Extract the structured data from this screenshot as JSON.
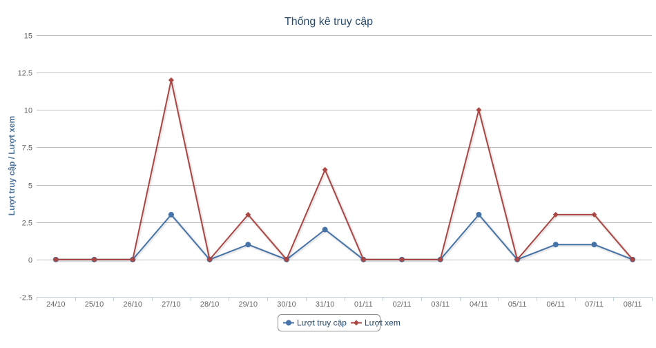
{
  "chart_data": {
    "type": "line",
    "title": "Thống kê truy cập",
    "xlabel": "",
    "ylabel": "Lượt truy cập / Lượt xem",
    "categories": [
      "24/10",
      "25/10",
      "26/10",
      "27/10",
      "28/10",
      "29/10",
      "30/10",
      "31/10",
      "01/11",
      "02/11",
      "03/11",
      "04/11",
      "05/11",
      "06/11",
      "07/11",
      "08/11"
    ],
    "ylim": [
      -2.5,
      15
    ],
    "yticks": [
      "-2.5",
      "0",
      "2.5",
      "5",
      "7.5",
      "10",
      "12.5",
      "15"
    ],
    "grid": true,
    "legend_position": "bottom-center",
    "series": [
      {
        "name": "Lượt truy cập",
        "color": "#4572a7",
        "marker": "circle",
        "values": [
          0,
          0,
          0,
          3,
          0,
          1,
          0,
          2,
          0,
          0,
          0,
          3,
          0,
          1,
          1,
          0
        ]
      },
      {
        "name": "Lượt xem",
        "color": "#aa4643",
        "marker": "diamond",
        "values": [
          0,
          0,
          0,
          12,
          0,
          3,
          0,
          6,
          0,
          0,
          0,
          10,
          0,
          3,
          3,
          0
        ]
      }
    ]
  }
}
